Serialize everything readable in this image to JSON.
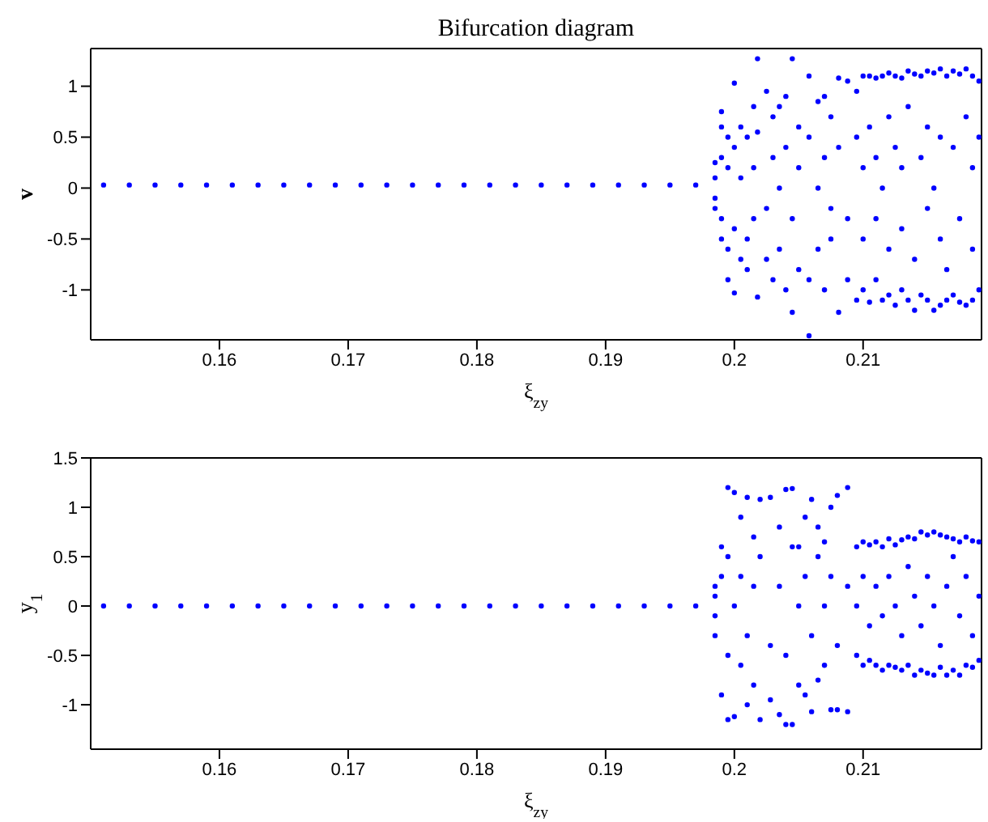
{
  "chart_data": [
    {
      "type": "scatter",
      "title": "Bifurcation diagram",
      "xlabel": "ξ$_{zy}$",
      "ylabel": "v",
      "xlim": [
        0.15,
        0.2192
      ],
      "ylim": [
        -1.49,
        1.37
      ],
      "xticks": [
        0.16,
        0.17,
        0.18,
        0.19,
        0.2,
        0.21
      ],
      "yticks": [
        -1,
        -0.5,
        0,
        0.5,
        1
      ],
      "marker": "circle",
      "x": [
        0.151,
        0.153,
        0.155,
        0.157,
        0.159,
        0.161,
        0.163,
        0.165,
        0.167,
        0.169,
        0.171,
        0.173,
        0.175,
        0.177,
        0.179,
        0.181,
        0.183,
        0.185,
        0.187,
        0.189,
        0.191,
        0.193,
        0.195,
        0.197,
        0.1985,
        0.1985,
        0.1985,
        0.1985,
        0.199,
        0.199,
        0.199,
        0.199,
        0.199,
        0.1995,
        0.1995,
        0.1995,
        0.1995,
        0.2,
        0.2,
        0.2,
        0.2,
        0.2005,
        0.2005,
        0.2005,
        0.201,
        0.201,
        0.201,
        0.2015,
        0.2015,
        0.2015,
        0.2018,
        0.2018,
        0.2018,
        0.2025,
        0.2025,
        0.2025,
        0.203,
        0.203,
        0.203,
        0.2035,
        0.2035,
        0.2035,
        0.204,
        0.204,
        0.204,
        0.2045,
        0.2045,
        0.2045,
        0.205,
        0.205,
        0.205,
        0.2058,
        0.2058,
        0.2058,
        0.2058,
        0.2065,
        0.2065,
        0.2065,
        0.207,
        0.207,
        0.207,
        0.2075,
        0.2075,
        0.2075,
        0.2081,
        0.2081,
        0.2081,
        0.2088,
        0.2088,
        0.2088,
        0.2095,
        0.2095,
        0.2095,
        0.21,
        0.21,
        0.21,
        0.21,
        0.2105,
        0.2105,
        0.2105,
        0.211,
        0.211,
        0.211,
        0.211,
        0.2115,
        0.2115,
        0.2115,
        0.212,
        0.212,
        0.212,
        0.212,
        0.2125,
        0.2125,
        0.2125,
        0.213,
        0.213,
        0.213,
        0.213,
        0.2135,
        0.2135,
        0.2135,
        0.214,
        0.214,
        0.214,
        0.2145,
        0.2145,
        0.2145,
        0.215,
        0.215,
        0.215,
        0.215,
        0.2155,
        0.2155,
        0.2155,
        0.216,
        0.216,
        0.216,
        0.216,
        0.2165,
        0.2165,
        0.2165,
        0.217,
        0.217,
        0.217,
        0.2175,
        0.2175,
        0.2175,
        0.218,
        0.218,
        0.218,
        0.2185,
        0.2185,
        0.2185,
        0.2185,
        0.219,
        0.219,
        0.219
      ],
      "series": [
        {
          "color": "#0000ff",
          "values": [
            0.03,
            0.03,
            0.03,
            0.03,
            0.03,
            0.03,
            0.03,
            0.03,
            0.03,
            0.03,
            0.03,
            0.03,
            0.03,
            0.03,
            0.03,
            0.03,
            0.03,
            0.03,
            0.03,
            0.03,
            0.03,
            0.03,
            0.03,
            0.03,
            0.1,
            -0.1,
            0.25,
            -0.2,
            0.6,
            -0.5,
            0.3,
            -0.3,
            0.75,
            -0.9,
            0.5,
            -0.6,
            0.2,
            1.03,
            -1.03,
            0.4,
            -0.4,
            0.6,
            -0.7,
            0.1,
            0.5,
            -0.5,
            -0.8,
            0.8,
            -0.3,
            0.2,
            1.27,
            -1.07,
            0.55,
            0.95,
            -0.7,
            -0.2,
            0.7,
            -0.9,
            0.3,
            0.8,
            -0.6,
            0,
            0.9,
            -1,
            0.4,
            1.27,
            -1.22,
            -0.3,
            0.6,
            -0.8,
            0.2,
            1.1,
            -1.45,
            -0.9,
            0.5,
            0.85,
            -0.6,
            0,
            0.9,
            -1,
            0.3,
            0.7,
            -0.5,
            -0.2,
            1.08,
            -1.22,
            0.4,
            1.05,
            -0.9,
            -0.3,
            0.95,
            -1.1,
            0.5,
            1.1,
            -1,
            -0.5,
            0.2,
            1.1,
            -1.12,
            0.6,
            1.08,
            -0.9,
            -0.3,
            0.3,
            1.1,
            -1.1,
            0,
            1.13,
            -1.05,
            0.7,
            -0.6,
            1.1,
            -1.15,
            0.4,
            1.08,
            -1,
            -0.4,
            0.2,
            1.15,
            -1.1,
            0.8,
            1.12,
            -1.2,
            -0.7,
            1.1,
            -1.05,
            0.3,
            1.15,
            -1.1,
            -0.2,
            0.6,
            1.13,
            -1.2,
            0,
            1.17,
            -1.15,
            0.5,
            -0.5,
            1.1,
            -1.1,
            -0.8,
            1.15,
            -1.05,
            0.4,
            1.12,
            -1.12,
            -0.3,
            1.17,
            -1.15,
            0.7,
            1.1,
            -1.1,
            -0.6,
            0.2,
            1.05,
            -1,
            0.5
          ]
        }
      ]
    },
    {
      "type": "scatter",
      "xlabel": "ξ$_{zy}$",
      "ylabel": "y$_{1}$",
      "xlim": [
        0.15,
        0.2192
      ],
      "ylim": [
        -1.45,
        1.5
      ],
      "xticks": [
        0.16,
        0.17,
        0.18,
        0.19,
        0.2,
        0.21
      ],
      "yticks": [
        -1,
        -0.5,
        0,
        0.5,
        1,
        1.5
      ],
      "marker": "circle",
      "x": [
        0.151,
        0.153,
        0.155,
        0.157,
        0.159,
        0.161,
        0.163,
        0.165,
        0.167,
        0.169,
        0.171,
        0.173,
        0.175,
        0.177,
        0.179,
        0.181,
        0.183,
        0.185,
        0.187,
        0.189,
        0.191,
        0.193,
        0.195,
        0.197,
        0.1985,
        0.1985,
        0.1985,
        0.1985,
        0.199,
        0.199,
        0.199,
        0.1995,
        0.1995,
        0.1995,
        0.1995,
        0.2,
        0.2,
        0.2,
        0.2005,
        0.2005,
        0.2005,
        0.201,
        0.201,
        0.201,
        0.2015,
        0.2015,
        0.2015,
        0.202,
        0.202,
        0.202,
        0.2028,
        0.2028,
        0.2028,
        0.2035,
        0.2035,
        0.2035,
        0.204,
        0.204,
        0.204,
        0.2045,
        0.2045,
        0.2045,
        0.205,
        0.205,
        0.205,
        0.2055,
        0.2055,
        0.2055,
        0.206,
        0.206,
        0.206,
        0.2065,
        0.2065,
        0.2065,
        0.207,
        0.207,
        0.207,
        0.2075,
        0.2075,
        0.2075,
        0.208,
        0.208,
        0.208,
        0.2088,
        0.2088,
        0.2088,
        0.2095,
        0.2095,
        0.2095,
        0.21,
        0.21,
        0.21,
        0.2105,
        0.2105,
        0.2105,
        0.211,
        0.211,
        0.211,
        0.2115,
        0.2115,
        0.2115,
        0.212,
        0.212,
        0.212,
        0.2125,
        0.2125,
        0.2125,
        0.213,
        0.213,
        0.213,
        0.2135,
        0.2135,
        0.2135,
        0.214,
        0.214,
        0.214,
        0.2145,
        0.2145,
        0.2145,
        0.215,
        0.215,
        0.215,
        0.2155,
        0.2155,
        0.2155,
        0.216,
        0.216,
        0.216,
        0.2165,
        0.2165,
        0.2165,
        0.217,
        0.217,
        0.217,
        0.2175,
        0.2175,
        0.2175,
        0.218,
        0.218,
        0.218,
        0.2185,
        0.2185,
        0.2185,
        0.219,
        0.219,
        0.219
      ],
      "series": [
        {
          "color": "#0000ff",
          "values": [
            0,
            0,
            0,
            0,
            0,
            0,
            0,
            0,
            0,
            0,
            0,
            0,
            0,
            0,
            0,
            0,
            0,
            0,
            0,
            0,
            0,
            0,
            0,
            0,
            0.2,
            -0.3,
            0.1,
            -0.1,
            0.6,
            -0.9,
            0.3,
            1.2,
            -1.15,
            0.5,
            -0.5,
            1.15,
            -1.12,
            0,
            0.9,
            -0.6,
            0.3,
            1.1,
            -1,
            -0.3,
            0.7,
            -0.8,
            0.2,
            1.08,
            -1.15,
            0.5,
            1.1,
            -0.95,
            -0.4,
            0.8,
            -1.1,
            0.2,
            1.18,
            -1.2,
            -0.5,
            1.19,
            -1.2,
            0.6,
            0.6,
            -0.8,
            0,
            0.9,
            -0.9,
            0.3,
            1.08,
            -1.07,
            -0.3,
            0.8,
            -0.75,
            0.5,
            0.65,
            -0.6,
            0,
            1,
            -1.05,
            0.3,
            1.12,
            -1.05,
            -0.4,
            1.2,
            -1.07,
            0.2,
            0.6,
            -0.5,
            0,
            0.65,
            -0.6,
            0.3,
            0.62,
            -0.55,
            -0.2,
            0.65,
            -0.6,
            0.2,
            0.6,
            -0.65,
            -0.1,
            0.68,
            -0.6,
            0.3,
            0.62,
            -0.62,
            0,
            0.67,
            -0.65,
            -0.3,
            0.7,
            -0.6,
            0.4,
            0.68,
            -0.7,
            0.1,
            0.75,
            -0.65,
            -0.2,
            0.72,
            -0.68,
            0.3,
            0.75,
            -0.7,
            0,
            0.72,
            -0.62,
            -0.4,
            0.7,
            -0.7,
            0.2,
            0.68,
            -0.65,
            0.5,
            0.65,
            -0.7,
            -0.1,
            0.7,
            -0.6,
            0.3,
            0.66,
            -0.62,
            -0.3,
            0.65,
            -0.55,
            0.1
          ]
        }
      ]
    }
  ]
}
